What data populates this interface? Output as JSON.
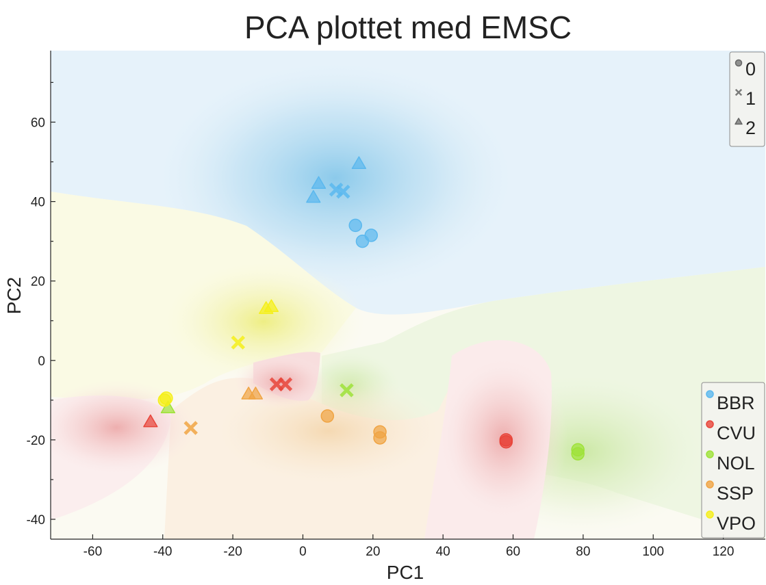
{
  "chart_data": {
    "type": "scatter",
    "title": "PCA plottet med EMSC",
    "xlabel": "PC1",
    "ylabel": "PC2",
    "xlim": [
      -72,
      132
    ],
    "ylim": [
      -45,
      78
    ],
    "xticks": [
      -60,
      -40,
      -20,
      0,
      20,
      40,
      60,
      80,
      100,
      120
    ],
    "yticks": [
      -40,
      -20,
      0,
      20,
      40,
      60
    ],
    "background": "decision-region shading per class",
    "marker_legend": {
      "placement": "top-right",
      "entries": [
        {
          "label": "0",
          "marker": "circle"
        },
        {
          "label": "1",
          "marker": "x"
        },
        {
          "label": "2",
          "marker": "triangle"
        }
      ]
    },
    "color_legend": {
      "placement": "bottom-right",
      "entries": [
        {
          "label": "BBR",
          "color": "#5bb8ee"
        },
        {
          "label": "CVU",
          "color": "#e8453a"
        },
        {
          "label": "NOL",
          "color": "#9ee238"
        },
        {
          "label": "SSP",
          "color": "#f0a443"
        },
        {
          "label": "VPO",
          "color": "#f5ef1a"
        }
      ]
    },
    "series": [
      {
        "name": "BBR",
        "color": "#5bb8ee",
        "points": [
          {
            "x": 15,
            "y": 34,
            "m": 0
          },
          {
            "x": 17,
            "y": 30,
            "m": 0
          },
          {
            "x": 19.5,
            "y": 31.5,
            "m": 0
          },
          {
            "x": 9.5,
            "y": 43,
            "m": 1
          },
          {
            "x": 11.5,
            "y": 42.5,
            "m": 1
          },
          {
            "x": 3,
            "y": 41,
            "m": 2
          },
          {
            "x": 4.5,
            "y": 44.5,
            "m": 2
          },
          {
            "x": 16,
            "y": 49.5,
            "m": 2
          }
        ]
      },
      {
        "name": "CVU",
        "color": "#e8453a",
        "points": [
          {
            "x": 58,
            "y": -20,
            "m": 0
          },
          {
            "x": 58,
            "y": -20.5,
            "m": 0
          },
          {
            "x": -7.5,
            "y": -6,
            "m": 1
          },
          {
            "x": -5,
            "y": -6,
            "m": 1
          },
          {
            "x": -43.5,
            "y": -15.5,
            "m": 2
          }
        ]
      },
      {
        "name": "NOL",
        "color": "#9ee238",
        "points": [
          {
            "x": 78.5,
            "y": -22.5,
            "m": 0
          },
          {
            "x": 78.5,
            "y": -23.5,
            "m": 0
          },
          {
            "x": 12.5,
            "y": -7.5,
            "m": 1
          },
          {
            "x": -38.5,
            "y": -12,
            "m": 2
          }
        ]
      },
      {
        "name": "SSP",
        "color": "#f0a443",
        "points": [
          {
            "x": 7,
            "y": -14,
            "m": 0
          },
          {
            "x": 22,
            "y": -18,
            "m": 0
          },
          {
            "x": 22,
            "y": -19.5,
            "m": 0
          },
          {
            "x": -32,
            "y": -17,
            "m": 1
          },
          {
            "x": -15.5,
            "y": -8.5,
            "m": 2
          },
          {
            "x": -13.5,
            "y": -8.5,
            "m": 2
          }
        ]
      },
      {
        "name": "VPO",
        "color": "#f5ef1a",
        "points": [
          {
            "x": -39.5,
            "y": -10,
            "m": 0
          },
          {
            "x": -39,
            "y": -9.5,
            "m": 0
          },
          {
            "x": -18.5,
            "y": 4.5,
            "m": 1
          },
          {
            "x": -10.5,
            "y": 13,
            "m": 2
          },
          {
            "x": -9,
            "y": 13.5,
            "m": 2
          }
        ]
      }
    ]
  }
}
